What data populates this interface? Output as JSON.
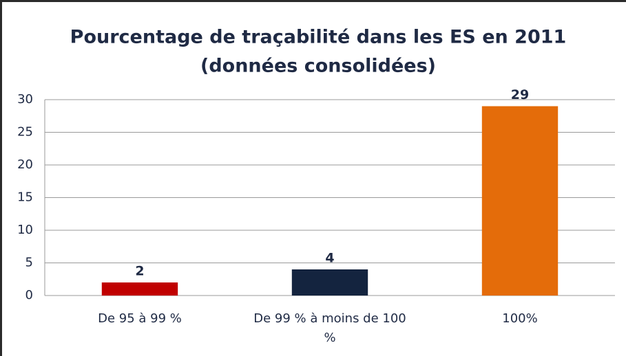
{
  "chart_data": {
    "type": "bar",
    "title": "Pourcentage de traçabilité dans les ES en 2011",
    "subtitle": "(données consolidées)",
    "categories": [
      "De 95 à 99 %",
      "De 99 % à moins de 100 %",
      "100%"
    ],
    "values": [
      2,
      4,
      29
    ],
    "colors": [
      "#c00000",
      "#14243f",
      "#e46c0a"
    ],
    "ylim": [
      0,
      30
    ],
    "yticks": [
      0,
      5,
      10,
      15,
      20,
      25,
      30
    ],
    "grid": true
  }
}
